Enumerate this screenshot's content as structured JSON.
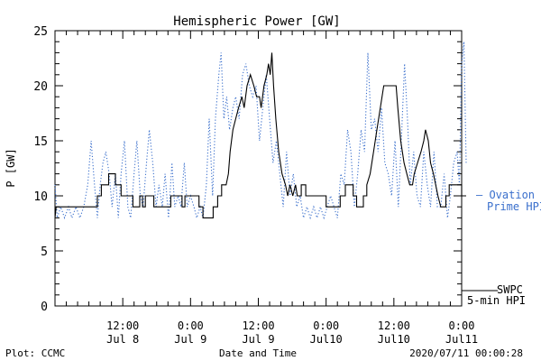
{
  "chart_data": {
    "type": "line",
    "title": "Hemispheric Power [GW]",
    "ylabel": "P [GW]",
    "xlabel": "Date and Time",
    "ylim": [
      0,
      25
    ],
    "yticks": [
      0,
      5,
      10,
      15,
      20,
      25
    ],
    "xlim_hours": [
      -24,
      48
    ],
    "xticks": [
      {
        "h": -12,
        "line1": "12:00",
        "line2": "Jul 8"
      },
      {
        "h": 0,
        "line1": "0:00",
        "line2": "Jul 9"
      },
      {
        "h": 12,
        "line1": "12:00",
        "line2": "Jul 9"
      },
      {
        "h": 24,
        "line1": "0:00",
        "line2": "Jul10"
      },
      {
        "h": 36,
        "line1": "12:00",
        "line2": "Jul10"
      },
      {
        "h": 48,
        "line1": "0:00",
        "line2": "Jul11"
      }
    ],
    "series": [
      {
        "name": "SWPC 5-min HPI",
        "label_lines": [
          "SWPC",
          "5-min HPI"
        ],
        "color": "#000000",
        "style": "solid",
        "points": [
          [
            -24,
            8
          ],
          [
            -23.8,
            9
          ],
          [
            -20,
            9
          ],
          [
            -16.5,
            9
          ],
          [
            -16.5,
            10
          ],
          [
            -15.8,
            10
          ],
          [
            -15.8,
            11
          ],
          [
            -14.5,
            11
          ],
          [
            -14.5,
            12
          ],
          [
            -13.3,
            12
          ],
          [
            -13.3,
            11
          ],
          [
            -12.3,
            11
          ],
          [
            -12.3,
            10
          ],
          [
            -10.2,
            10
          ],
          [
            -10.2,
            9
          ],
          [
            -9,
            9
          ],
          [
            -9,
            10
          ],
          [
            -8.5,
            10
          ],
          [
            -8.5,
            9
          ],
          [
            -8,
            9
          ],
          [
            -8,
            10
          ],
          [
            -6.5,
            10
          ],
          [
            -6.5,
            9
          ],
          [
            -3.5,
            9
          ],
          [
            -3.5,
            10
          ],
          [
            -1.5,
            10
          ],
          [
            -1.5,
            9
          ],
          [
            -1,
            9
          ],
          [
            -1,
            10
          ],
          [
            1.5,
            10
          ],
          [
            1.5,
            9
          ],
          [
            2.2,
            9
          ],
          [
            2.2,
            8
          ],
          [
            4,
            8
          ],
          [
            4,
            9
          ],
          [
            4.8,
            9
          ],
          [
            4.8,
            10
          ],
          [
            5.5,
            10
          ],
          [
            5.5,
            11
          ],
          [
            6.3,
            11
          ],
          [
            6.7,
            12
          ],
          [
            7,
            14
          ],
          [
            7.5,
            16
          ],
          [
            8,
            17
          ],
          [
            8.5,
            18
          ],
          [
            9.1,
            19
          ],
          [
            9.5,
            18
          ],
          [
            10,
            20
          ],
          [
            10.6,
            21
          ],
          [
            11.2,
            20
          ],
          [
            11.7,
            19
          ],
          [
            12.2,
            19
          ],
          [
            12.5,
            18
          ],
          [
            13,
            20
          ],
          [
            13.5,
            21
          ],
          [
            13.8,
            22
          ],
          [
            14.1,
            21
          ],
          [
            14.4,
            23
          ],
          [
            14.7,
            20
          ],
          [
            15.1,
            17
          ],
          [
            15.6,
            14
          ],
          [
            16.2,
            12
          ],
          [
            16.8,
            11
          ],
          [
            17.2,
            10
          ],
          [
            17.6,
            11
          ],
          [
            18.1,
            10
          ],
          [
            18.6,
            11
          ],
          [
            18.9,
            10
          ],
          [
            19.6,
            10
          ],
          [
            19.6,
            11
          ],
          [
            20.4,
            11
          ],
          [
            20.4,
            10
          ],
          [
            24,
            10
          ],
          [
            24,
            9
          ],
          [
            26.5,
            9
          ],
          [
            26.5,
            10
          ],
          [
            27.4,
            10
          ],
          [
            27.4,
            11
          ],
          [
            28.8,
            11
          ],
          [
            28.8,
            10
          ],
          [
            29.4,
            10
          ],
          [
            29.4,
            9
          ],
          [
            30.6,
            9
          ],
          [
            30.6,
            10
          ],
          [
            31.2,
            10
          ],
          [
            31.2,
            11
          ],
          [
            31.8,
            12
          ],
          [
            32.4,
            14
          ],
          [
            33,
            16
          ],
          [
            33.6,
            18
          ],
          [
            34.2,
            20
          ],
          [
            36.4,
            20
          ],
          [
            36.7,
            18
          ],
          [
            37.2,
            15
          ],
          [
            37.8,
            13
          ],
          [
            38.3,
            12
          ],
          [
            38.8,
            11
          ],
          [
            39.3,
            11
          ],
          [
            39.6,
            12
          ],
          [
            40.2,
            13
          ],
          [
            40.8,
            14
          ],
          [
            41.3,
            15
          ],
          [
            41.6,
            16
          ],
          [
            42.1,
            15
          ],
          [
            42.5,
            13
          ],
          [
            43,
            12
          ],
          [
            43.4,
            11
          ],
          [
            43.8,
            10
          ],
          [
            44.3,
            9
          ],
          [
            45.2,
            9
          ],
          [
            45.2,
            10
          ],
          [
            45.8,
            10
          ],
          [
            45.8,
            11
          ],
          [
            48,
            11
          ],
          [
            48,
            10
          ],
          [
            48.8,
            10
          ]
        ]
      },
      {
        "name": "Ovation Prime HPI",
        "label_lines": [
          "— Ovation",
          "Prime HPI"
        ],
        "color": "#3a6fcc",
        "style": "dotted",
        "points": [
          [
            -24,
            11
          ],
          [
            -23.6,
            8
          ],
          [
            -23,
            9
          ],
          [
            -22.3,
            8
          ],
          [
            -21.6,
            9
          ],
          [
            -21,
            8
          ],
          [
            -20.3,
            9
          ],
          [
            -19.6,
            8
          ],
          [
            -18.9,
            9
          ],
          [
            -18.2,
            11
          ],
          [
            -17.6,
            15
          ],
          [
            -17,
            11
          ],
          [
            -16.5,
            8
          ],
          [
            -16,
            11
          ],
          [
            -15.5,
            13
          ],
          [
            -15,
            14
          ],
          [
            -14.4,
            12
          ],
          [
            -13.9,
            9
          ],
          [
            -13.3,
            12
          ],
          [
            -12.8,
            8
          ],
          [
            -12.3,
            12
          ],
          [
            -11.7,
            15
          ],
          [
            -11.1,
            9
          ],
          [
            -10.6,
            8
          ],
          [
            -10,
            12
          ],
          [
            -9.5,
            15
          ],
          [
            -8.9,
            10
          ],
          [
            -8.4,
            9
          ],
          [
            -7.8,
            13
          ],
          [
            -7.3,
            16
          ],
          [
            -6.7,
            13
          ],
          [
            -6.1,
            9
          ],
          [
            -5.6,
            11
          ],
          [
            -5,
            9
          ],
          [
            -4.5,
            12
          ],
          [
            -3.9,
            8
          ],
          [
            -3.3,
            13
          ],
          [
            -2.8,
            9
          ],
          [
            -2.2,
            10
          ],
          [
            -1.7,
            9
          ],
          [
            -1.1,
            13
          ],
          [
            -0.6,
            9
          ],
          [
            0,
            10
          ],
          [
            0.6,
            9
          ],
          [
            1.1,
            8
          ],
          [
            1.7,
            9
          ],
          [
            2.2,
            8
          ],
          [
            2.8,
            11
          ],
          [
            3.3,
            17
          ],
          [
            3.9,
            10
          ],
          [
            4.4,
            17
          ],
          [
            5,
            21
          ],
          [
            5.4,
            23
          ],
          [
            5.9,
            17
          ],
          [
            6.4,
            19
          ],
          [
            6.9,
            16
          ],
          [
            7.5,
            18
          ],
          [
            8,
            19
          ],
          [
            8.6,
            17
          ],
          [
            9.2,
            21
          ],
          [
            9.8,
            22
          ],
          [
            10.4,
            20
          ],
          [
            11,
            19
          ],
          [
            11.6,
            20
          ],
          [
            12.2,
            15
          ],
          [
            12.8,
            18
          ],
          [
            13.4,
            21
          ],
          [
            14,
            17
          ],
          [
            14.6,
            13
          ],
          [
            15.2,
            15
          ],
          [
            15.8,
            12
          ],
          [
            16.4,
            9
          ],
          [
            17,
            14
          ],
          [
            17.6,
            10
          ],
          [
            18.2,
            12
          ],
          [
            18.8,
            9
          ],
          [
            19.4,
            10
          ],
          [
            20,
            8
          ],
          [
            20.6,
            9
          ],
          [
            21.2,
            8
          ],
          [
            21.8,
            9
          ],
          [
            22.4,
            8
          ],
          [
            23,
            9
          ],
          [
            23.6,
            8
          ],
          [
            24.2,
            9
          ],
          [
            24.8,
            10
          ],
          [
            25.4,
            9
          ],
          [
            26,
            8
          ],
          [
            26.6,
            12
          ],
          [
            27.2,
            11
          ],
          [
            27.8,
            16
          ],
          [
            28.4,
            14
          ],
          [
            29,
            9
          ],
          [
            29.6,
            12
          ],
          [
            30.2,
            16
          ],
          [
            30.8,
            14
          ],
          [
            31.4,
            23
          ],
          [
            32,
            16
          ],
          [
            32.6,
            17
          ],
          [
            33.2,
            14
          ],
          [
            33.8,
            18
          ],
          [
            34.4,
            13
          ],
          [
            35,
            12
          ],
          [
            35.6,
            10
          ],
          [
            36.2,
            15
          ],
          [
            36.8,
            9
          ],
          [
            37.4,
            16
          ],
          [
            37.9,
            22
          ],
          [
            38.4,
            17
          ],
          [
            38.9,
            11
          ],
          [
            39.5,
            14
          ],
          [
            40.1,
            10
          ],
          [
            40.7,
            9
          ],
          [
            41.3,
            14
          ],
          [
            41.9,
            11
          ],
          [
            42.5,
            9
          ],
          [
            43.1,
            14
          ],
          [
            43.7,
            9
          ],
          [
            44.3,
            9
          ],
          [
            44.9,
            12
          ],
          [
            45.5,
            8
          ],
          [
            46,
            10
          ],
          [
            46.6,
            13
          ],
          [
            47.2,
            14
          ],
          [
            47.6,
            11
          ],
          [
            48,
            22
          ],
          [
            48.4,
            24
          ],
          [
            48.8,
            13
          ]
        ]
      }
    ],
    "footer": {
      "left": "Plot: CCMC",
      "center": "Date and Time",
      "right": "2020/07/11 00:00:28"
    }
  }
}
